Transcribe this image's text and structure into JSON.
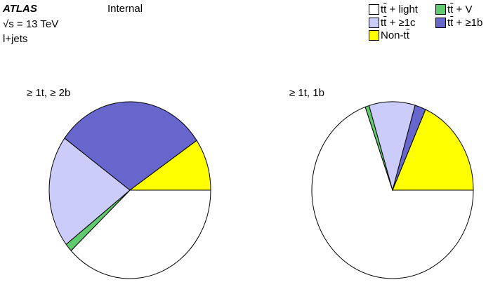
{
  "header": {
    "experiment": "ATLAS",
    "status": "Internal",
    "energy": "√s = 13 TeV",
    "channel": "l+jets"
  },
  "legend": [
    {
      "pre": "t",
      "bar": "t",
      "post": " + light",
      "color": "#ffffff"
    },
    {
      "pre": "t",
      "bar": "t",
      "post": " + V",
      "color": "#5fcb6e"
    },
    {
      "pre": "t",
      "bar": "t",
      "post": " + ≥1c",
      "color": "#ccccfb"
    },
    {
      "pre": "t",
      "bar": "t",
      "post": " + ≥1b",
      "color": "#6666cc"
    },
    {
      "pre": "Non-t",
      "bar": "t",
      "post": "",
      "color": "#ffff00"
    }
  ],
  "chart_data": [
    {
      "type": "pie",
      "title": "≥ 1t, ≥ 2b",
      "labels": [
        "tt̄ + light",
        "tt̄ + V",
        "tt̄ + ≥1c",
        "tt̄ + ≥1b",
        "Non-tt̄"
      ],
      "colors": [
        "#ffffff",
        "#5fcb6e",
        "#ccccfb",
        "#6666cc",
        "#ffff00"
      ],
      "values": [
        38.0,
        1.5,
        20.5,
        30.5,
        9.5
      ]
    },
    {
      "type": "pie",
      "title": "≥ 1t, 1b",
      "labels": [
        "tt̄ + light",
        "tt̄ + V",
        "tt̄ + ≥1c",
        "tt̄ + ≥1b",
        "Non-tt̄"
      ],
      "colors": [
        "#ffffff",
        "#5fcb6e",
        "#ccccfb",
        "#6666cc",
        "#ffff00"
      ],
      "values": [
        69.5,
        0.8,
        9.2,
        2.2,
        18.3
      ]
    }
  ]
}
